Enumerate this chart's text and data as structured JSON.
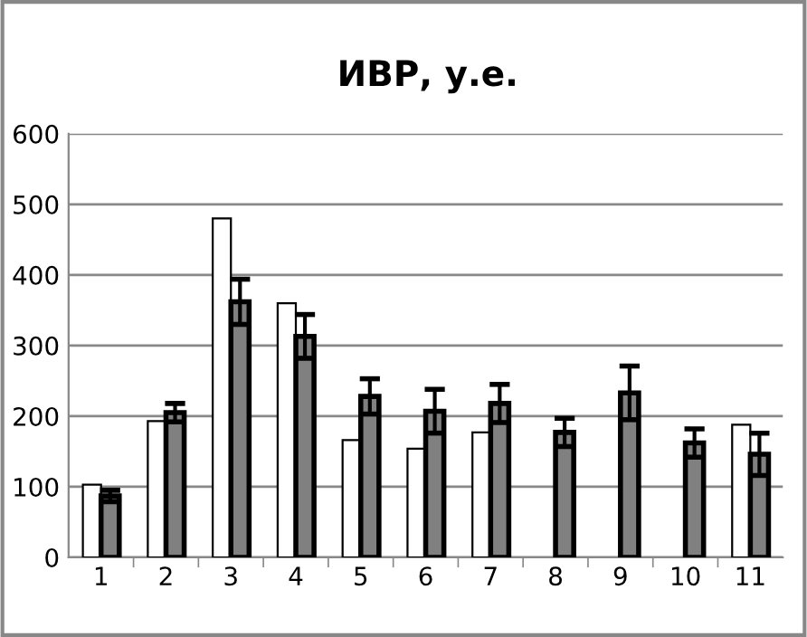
{
  "chart_data": {
    "type": "bar",
    "title": "ИВР, у.е.",
    "categories": [
      "1",
      "2",
      "3",
      "4",
      "5",
      "6",
      "7",
      "8",
      "9",
      "10",
      "11"
    ],
    "series": [
      {
        "color": "#ffffff",
        "values": [
          103,
          193,
          480,
          360,
          166,
          154,
          177,
          null,
          null,
          null,
          188
        ]
      },
      {
        "color": "#808080",
        "values": [
          87,
          205,
          362,
          313,
          228,
          207,
          218,
          177,
          233,
          162,
          146
        ],
        "errors": [
          8,
          13,
          32,
          31,
          25,
          31,
          27,
          20,
          38,
          20,
          30
        ]
      }
    ],
    "ylim": [
      0,
      600
    ],
    "yticks": [
      0,
      100,
      200,
      300,
      400,
      500,
      600
    ],
    "grid": "y",
    "legend": false
  }
}
